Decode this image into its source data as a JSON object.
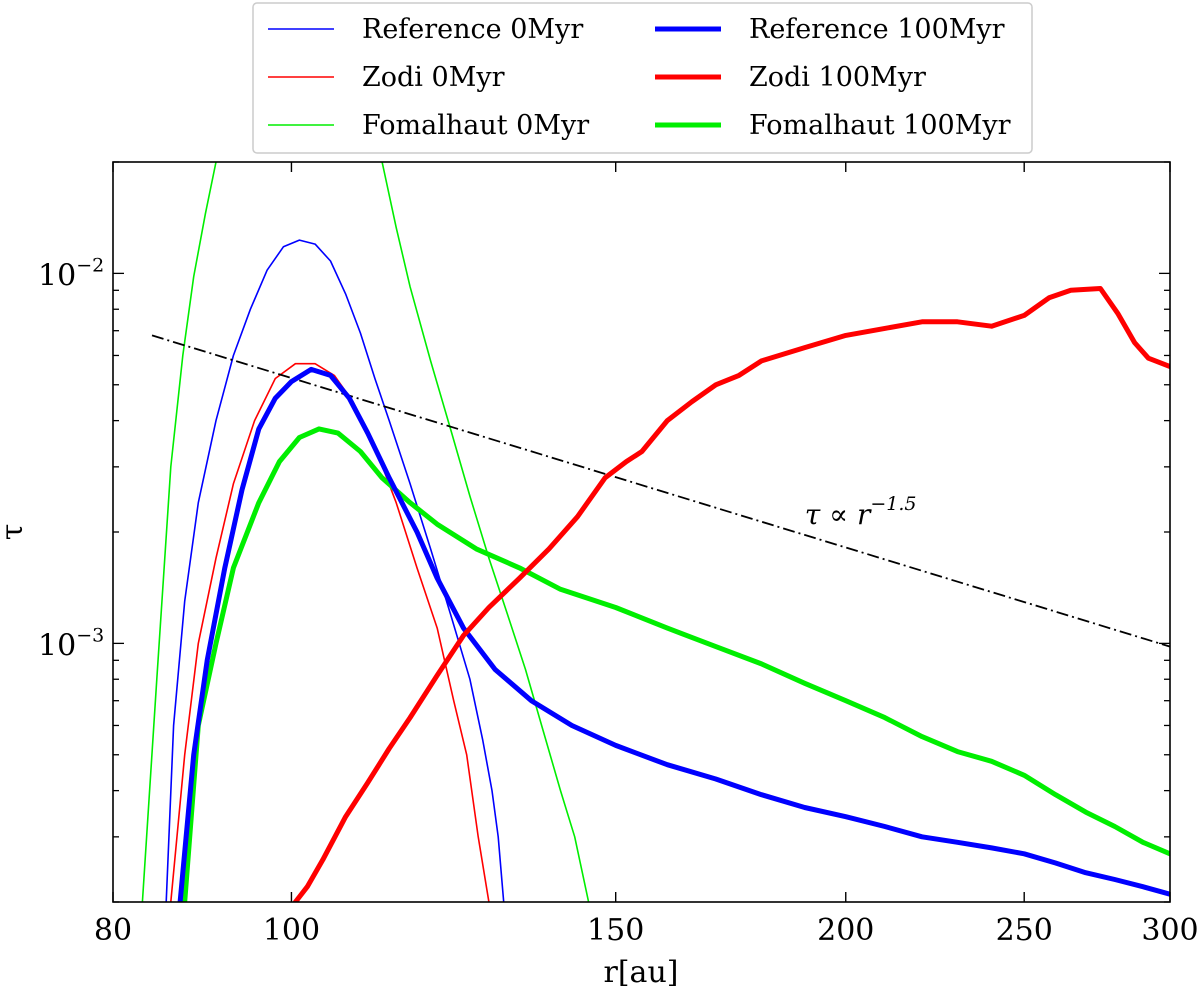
{
  "chart_data": {
    "type": "line",
    "xlabel": "r[au]",
    "ylabel": "τ",
    "xscale": "log",
    "yscale": "log",
    "xlim": [
      80,
      300
    ],
    "ylim": [
      0.0002,
      0.02
    ],
    "x_ticks": [
      {
        "value": 80,
        "label": "80"
      },
      {
        "value": 100,
        "label": "100"
      },
      {
        "value": 150,
        "label": "150"
      },
      {
        "value": 200,
        "label": "200"
      },
      {
        "value": 250,
        "label": "250"
      },
      {
        "value": 300,
        "label": "300"
      }
    ],
    "y_ticks": [
      {
        "value": 0.01,
        "base": "10",
        "exp": "−2"
      },
      {
        "value": 0.001,
        "base": "10",
        "exp": "−3"
      }
    ],
    "legend_position": "top, outside above plot, 2 columns",
    "series": [
      {
        "name": "Reference 0Myr",
        "color": "#0000ff",
        "width": "thin",
        "points": [
          [
            85.5,
            0.0002
          ],
          [
            86.3,
            0.0006
          ],
          [
            87.5,
            0.0013
          ],
          [
            89,
            0.0024
          ],
          [
            91,
            0.004
          ],
          [
            93,
            0.006
          ],
          [
            95,
            0.008
          ],
          [
            97,
            0.0102
          ],
          [
            99,
            0.0118
          ],
          [
            101,
            0.0123
          ],
          [
            103,
            0.012
          ],
          [
            105,
            0.0108
          ],
          [
            107,
            0.0088
          ],
          [
            109,
            0.0069
          ],
          [
            111,
            0.0052
          ],
          [
            113,
            0.004
          ],
          [
            116,
            0.0027
          ],
          [
            119,
            0.0018
          ],
          [
            122,
            0.0012
          ],
          [
            125,
            0.0008
          ],
          [
            127,
            0.00055
          ],
          [
            128.5,
            0.0004
          ],
          [
            129.5,
            0.0003
          ],
          [
            130.4,
            0.0002
          ]
        ]
      },
      {
        "name": "Zodi 0Myr",
        "color": "#ff0000",
        "width": "thin",
        "points": [
          [
            86,
            0.0002
          ],
          [
            87.5,
            0.0005
          ],
          [
            89,
            0.001
          ],
          [
            91,
            0.0017
          ],
          [
            93,
            0.0027
          ],
          [
            95.5,
            0.004
          ],
          [
            98,
            0.0052
          ],
          [
            100.5,
            0.0057
          ],
          [
            103,
            0.0057
          ],
          [
            105.5,
            0.0053
          ],
          [
            108,
            0.0045
          ],
          [
            111,
            0.0034
          ],
          [
            114,
            0.0024
          ],
          [
            117,
            0.0016
          ],
          [
            120,
            0.0011
          ],
          [
            122.5,
            0.0007
          ],
          [
            124.5,
            0.0005
          ],
          [
            126.3,
            0.0003
          ],
          [
            128,
            0.0002
          ]
        ]
      },
      {
        "name": "Fomalhaut 0Myr",
        "color": "#00ee00",
        "width": "thin",
        "points": [
          [
            83,
            0.0002
          ],
          [
            84.5,
            0.0008
          ],
          [
            86,
            0.003
          ],
          [
            87.3,
            0.006
          ],
          [
            88.5,
            0.0098
          ],
          [
            89.8,
            0.0145
          ],
          [
            91,
            0.02
          ]
        ]
      },
      {
        "name": "Fomalhaut 0Myr",
        "color": "#00ee00",
        "width": "thin",
        "legend": false,
        "points": [
          [
            112,
            0.02
          ],
          [
            114,
            0.0133
          ],
          [
            116,
            0.0092
          ],
          [
            119,
            0.0058
          ],
          [
            122,
            0.0038
          ],
          [
            125,
            0.0025
          ],
          [
            128,
            0.0017
          ],
          [
            131,
            0.0012
          ],
          [
            134,
            0.00085
          ],
          [
            137,
            0.00058
          ],
          [
            140,
            0.0004
          ],
          [
            142.5,
            0.0003
          ],
          [
            145,
            0.0002
          ]
        ]
      },
      {
        "name": "Reference 100Myr",
        "color": "#0000ff",
        "width": "thick",
        "points": [
          [
            87,
            0.0002
          ],
          [
            88.5,
            0.0005
          ],
          [
            90,
            0.0009
          ],
          [
            92,
            0.0016
          ],
          [
            94,
            0.0026
          ],
          [
            96,
            0.0038
          ],
          [
            98,
            0.0046
          ],
          [
            100,
            0.0051
          ],
          [
            102.5,
            0.0055
          ],
          [
            105,
            0.0053
          ],
          [
            107.5,
            0.0046
          ],
          [
            110,
            0.0037
          ],
          [
            113,
            0.0028
          ],
          [
            117,
            0.002
          ],
          [
            120,
            0.0015
          ],
          [
            124,
            0.0011
          ],
          [
            129,
            0.00085
          ],
          [
            135,
            0.0007
          ],
          [
            142,
            0.0006
          ],
          [
            150,
            0.00053
          ],
          [
            160,
            0.00047
          ],
          [
            170,
            0.00043
          ],
          [
            180,
            0.00039
          ],
          [
            190,
            0.00036
          ],
          [
            200,
            0.00034
          ],
          [
            210,
            0.00032
          ],
          [
            220,
            0.0003
          ],
          [
            230,
            0.00029
          ],
          [
            240,
            0.00028
          ],
          [
            250,
            0.00027
          ],
          [
            260,
            0.000255
          ],
          [
            270,
            0.00024
          ],
          [
            280,
            0.00023
          ],
          [
            290,
            0.00022
          ],
          [
            300,
            0.00021
          ]
        ]
      },
      {
        "name": "Zodi 100Myr",
        "color": "#ff0000",
        "width": "thick",
        "points": [
          [
            100.5,
            0.0002
          ],
          [
            102,
            0.00022
          ],
          [
            104,
            0.00026
          ],
          [
            107,
            0.00034
          ],
          [
            110,
            0.00042
          ],
          [
            113,
            0.00052
          ],
          [
            116,
            0.00063
          ],
          [
            120,
            0.00082
          ],
          [
            124,
            0.00105
          ],
          [
            128,
            0.00125
          ],
          [
            133,
            0.0015
          ],
          [
            138,
            0.0018
          ],
          [
            143,
            0.0022
          ],
          [
            148,
            0.0028
          ],
          [
            152,
            0.0031
          ],
          [
            155,
            0.0033
          ],
          [
            160,
            0.004
          ],
          [
            165,
            0.0045
          ],
          [
            170,
            0.005
          ],
          [
            175,
            0.0053
          ],
          [
            180,
            0.0058
          ],
          [
            190,
            0.0063
          ],
          [
            200,
            0.0068
          ],
          [
            210,
            0.0071
          ],
          [
            220,
            0.0074
          ],
          [
            230,
            0.0074
          ],
          [
            240,
            0.0072
          ],
          [
            250,
            0.0077
          ],
          [
            258,
            0.0086
          ],
          [
            265,
            0.009
          ],
          [
            275,
            0.0091
          ],
          [
            281,
            0.0078
          ],
          [
            287,
            0.0065
          ],
          [
            292,
            0.0059
          ],
          [
            300,
            0.0056
          ]
        ]
      },
      {
        "name": "Fomalhaut 100Myr",
        "color": "#00ee00",
        "width": "thick",
        "points": [
          [
            87.5,
            0.0002
          ],
          [
            89,
            0.0006
          ],
          [
            91,
            0.001
          ],
          [
            93,
            0.0016
          ],
          [
            96,
            0.0024
          ],
          [
            98.5,
            0.0031
          ],
          [
            101,
            0.0036
          ],
          [
            103.5,
            0.0038
          ],
          [
            106,
            0.0037
          ],
          [
            109,
            0.0033
          ],
          [
            112,
            0.0028
          ],
          [
            116,
            0.0024
          ],
          [
            120,
            0.0021
          ],
          [
            126,
            0.0018
          ],
          [
            133,
            0.0016
          ],
          [
            140,
            0.0014
          ],
          [
            150,
            0.00125
          ],
          [
            160,
            0.0011
          ],
          [
            170,
            0.00098
          ],
          [
            180,
            0.00088
          ],
          [
            190,
            0.00078
          ],
          [
            200,
            0.0007
          ],
          [
            210,
            0.00063
          ],
          [
            220,
            0.00056
          ],
          [
            230,
            0.00051
          ],
          [
            240,
            0.00048
          ],
          [
            250,
            0.00044
          ],
          [
            260,
            0.00039
          ],
          [
            270,
            0.00035
          ],
          [
            280,
            0.00032
          ],
          [
            290,
            0.00029
          ],
          [
            300,
            0.00027
          ]
        ]
      },
      {
        "name": "τ ∝ r^-1.5",
        "color": "#000000",
        "width": "dashdot",
        "legend": false,
        "points": [
          [
            84,
            0.0068
          ],
          [
            300,
            0.00098
          ]
        ]
      }
    ],
    "annotation": {
      "text_base": "τ ∝ r",
      "text_exp": "−1.5",
      "x": 190,
      "y": 0.0021
    }
  }
}
